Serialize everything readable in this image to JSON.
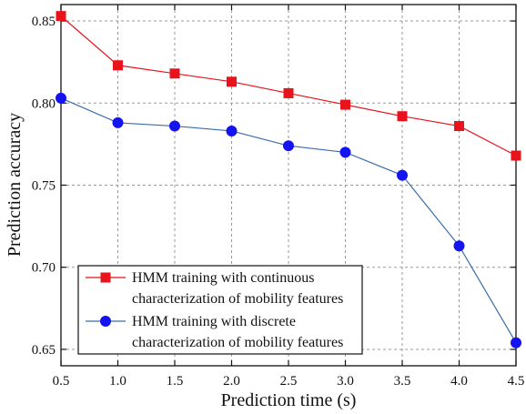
{
  "chart_data": {
    "type": "line",
    "xlabel": "Prediction time (s)",
    "ylabel": "Prediction accuracy",
    "x": [
      0.5,
      1.0,
      1.5,
      2.0,
      2.5,
      3.0,
      3.5,
      4.0,
      4.5
    ],
    "x_tick_labels": [
      "0.5",
      "1.0",
      "1.5",
      "2.0",
      "2.5",
      "3.0",
      "3.5",
      "4.0",
      "4.5"
    ],
    "y_tick_labels": [
      "0.65",
      "0.70",
      "0.75",
      "0.80",
      "0.85"
    ],
    "y_ticks": [
      0.65,
      0.7,
      0.75,
      0.8,
      0.85
    ],
    "xlim": [
      0.5,
      4.5
    ],
    "ylim": [
      0.64,
      0.86
    ],
    "grid": true,
    "legend_position": "bottom-left",
    "series": [
      {
        "name_line1": "HMM training with continuous",
        "name_line2": "characterization of mobility features",
        "color": "#e8131b",
        "marker": "square",
        "values": [
          0.853,
          0.823,
          0.818,
          0.813,
          0.806,
          0.799,
          0.792,
          0.786,
          0.768
        ]
      },
      {
        "name_line1": "HMM training with discrete",
        "name_line2": "characterization of mobility features",
        "color": "#1414f0",
        "line_color": "#3a6ea5",
        "marker": "circle",
        "values": [
          0.803,
          0.788,
          0.786,
          0.783,
          0.774,
          0.77,
          0.756,
          0.713,
          0.654
        ]
      }
    ]
  }
}
